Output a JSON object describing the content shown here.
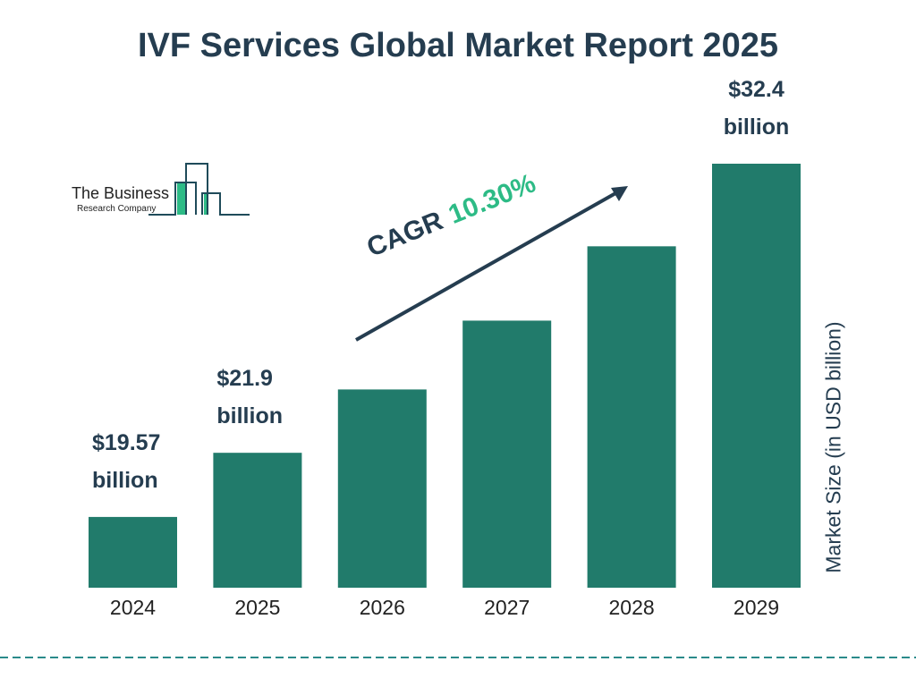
{
  "title": "IVF Services Global Market Report 2025",
  "logo": {
    "line1": "The Business",
    "line2": "Research Company"
  },
  "cagr": {
    "label": "CAGR",
    "value": "10.30%"
  },
  "colors": {
    "bar": "#217b6b",
    "title": "#253d50",
    "cagr": "#2dbb86",
    "divider": "#2a8a8a"
  },
  "chart_data": {
    "type": "bar",
    "title": "IVF Services Global Market Report 2025",
    "categories": [
      "2024",
      "2025",
      "2026",
      "2027",
      "2028",
      "2029"
    ],
    "values": [
      19.57,
      21.9,
      24.2,
      26.7,
      29.4,
      32.4
    ],
    "data_labels": [
      [
        "$19.57",
        "billion"
      ],
      [
        "$21.9",
        "billion"
      ],
      null,
      null,
      null,
      [
        "$32.4",
        "billion"
      ]
    ],
    "xlabel": "",
    "ylabel": "Market Size (in USD billion)",
    "ylim": [
      17,
      32.4
    ],
    "grid": false,
    "legend": "none"
  }
}
